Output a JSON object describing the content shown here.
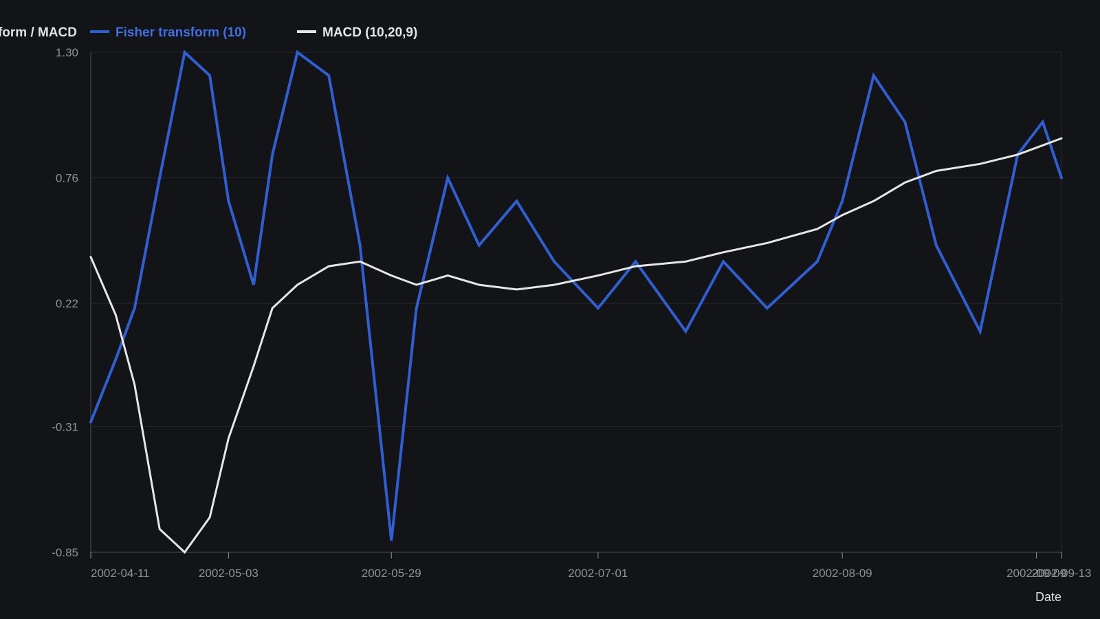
{
  "chart_data": {
    "type": "line",
    "ylabel": "Fisher transform / MACD",
    "xlabel": "Date",
    "ylim": [
      -0.85,
      1.3
    ],
    "y_ticks": [
      "1.30",
      "0.76",
      "0.22",
      "-0.31",
      "-0.85"
    ],
    "x_tick_dates": [
      "2002-04-11",
      "2002-05-03",
      "2002-05-29",
      "2002-07-01",
      "2002-08-09",
      "2002-09-09",
      "2002-09-13"
    ],
    "x_tick_labels": [
      "2002-04-11",
      "2002-05-03",
      "2002-05-29",
      "2002-07-01",
      "2002-08-09",
      "2002-09-09",
      "2002-09-13"
    ],
    "x_range": [
      "2002-04-11",
      "2002-09-13"
    ],
    "grid": true,
    "legend_position": "top-left",
    "x": [
      "2002-04-11",
      "2002-04-15",
      "2002-04-18",
      "2002-04-22",
      "2002-04-26",
      "2002-04-30",
      "2002-05-03",
      "2002-05-07",
      "2002-05-10",
      "2002-05-14",
      "2002-05-19",
      "2002-05-24",
      "2002-05-29",
      "2002-06-02",
      "2002-06-07",
      "2002-06-12",
      "2002-06-18",
      "2002-06-24",
      "2002-07-01",
      "2002-07-07",
      "2002-07-15",
      "2002-07-21",
      "2002-07-28",
      "2002-08-05",
      "2002-08-09",
      "2002-08-14",
      "2002-08-19",
      "2002-08-24",
      "2002-08-31",
      "2002-09-06",
      "2002-09-10",
      "2002-09-13"
    ],
    "series": [
      {
        "name": "Fisher transform (10)",
        "color": "#2f5fd0",
        "values": [
          -0.29,
          -0.02,
          0.2,
          0.76,
          1.3,
          1.2,
          0.66,
          0.3,
          0.86,
          1.3,
          1.2,
          0.47,
          -0.8,
          0.2,
          0.76,
          0.47,
          0.66,
          0.4,
          0.2,
          0.4,
          0.1,
          0.4,
          0.2,
          0.4,
          0.66,
          1.2,
          1.0,
          0.47,
          0.1,
          0.86,
          1.0,
          0.76
        ]
      },
      {
        "name": "MACD (10,20,9)",
        "color": "#e6e6e6",
        "values": [
          0.42,
          0.17,
          -0.13,
          -0.75,
          -0.85,
          -0.7,
          -0.36,
          -0.05,
          0.2,
          0.3,
          0.38,
          0.4,
          0.34,
          0.3,
          0.34,
          0.3,
          0.28,
          0.3,
          0.34,
          0.38,
          0.4,
          0.44,
          0.48,
          0.54,
          0.6,
          0.66,
          0.74,
          0.79,
          0.82,
          0.86,
          0.9,
          0.93
        ]
      }
    ]
  }
}
